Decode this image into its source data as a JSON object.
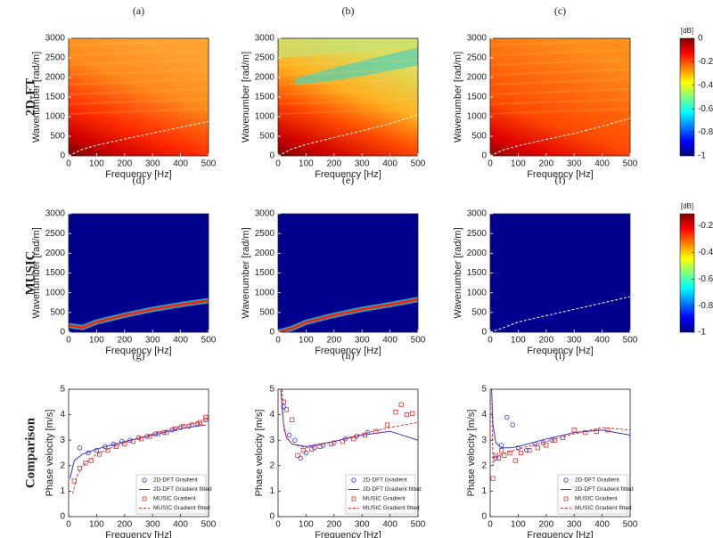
{
  "panel_labels": [
    "(a)",
    "(b)",
    "(c)",
    "(d)",
    "(e)",
    "(f)",
    "(g)",
    "(h)",
    "(i)"
  ],
  "row_labels": [
    "2D-FT",
    "MUSIC",
    "Comparison"
  ],
  "colorbars": [
    {
      "label": "[dB]",
      "lim": [
        -1,
        0
      ],
      "ticks": [
        0,
        -0.2,
        -0.4,
        -0.6,
        -0.8,
        -1
      ]
    },
    {
      "label": "[dB]",
      "lim": [
        -1,
        -0.11
      ],
      "ticks": [
        -0.2,
        -0.4,
        -0.6,
        -0.8,
        -1
      ]
    }
  ],
  "chart_data": [
    {
      "type": "heatmap",
      "xlabel": "Frequency [Hz]",
      "ylabel": "Wavenumber [rad/m]",
      "xlim": [
        0,
        500
      ],
      "ylim": [
        0,
        3000
      ],
      "xticks": [
        0,
        100,
        200,
        300,
        400,
        500
      ],
      "yticks": [
        0,
        500,
        1000,
        1500,
        2000,
        2500,
        3000
      ],
      "x": [
        0,
        50,
        100,
        200,
        300,
        400,
        500
      ],
      "series": [
        {
          "color": "#ffffff",
          "style": "dashed",
          "values": [
            0,
            170,
            270,
            430,
            580,
            730,
            880
          ]
        }
      ]
    },
    {
      "type": "heatmap",
      "xlabel": "Frequency [Hz]",
      "ylabel": "Wavenumber [rad/m]",
      "xlim": [
        0,
        500
      ],
      "ylim": [
        0,
        3000
      ],
      "xticks": [
        0,
        100,
        200,
        300,
        400,
        500
      ],
      "yticks": [
        0,
        500,
        1000,
        1500,
        2000,
        2500,
        3000
      ],
      "x": [
        0,
        50,
        100,
        200,
        300,
        400,
        500
      ],
      "series": [
        {
          "color": "#ffffff",
          "style": "dashed",
          "values": [
            0,
            180,
            290,
            470,
            640,
            820,
            1050
          ]
        }
      ]
    },
    {
      "type": "heatmap",
      "xlabel": "Frequency [Hz]",
      "ylabel": "Wavenumber [rad/m]",
      "xlim": [
        0,
        500
      ],
      "ylim": [
        0,
        3000
      ],
      "xticks": [
        0,
        100,
        200,
        300,
        400,
        500
      ],
      "yticks": [
        0,
        500,
        1000,
        1500,
        2000,
        2500,
        3000
      ],
      "x": [
        0,
        50,
        100,
        200,
        300,
        400,
        500
      ],
      "series": [
        {
          "color": "#ffffff",
          "style": "dashed",
          "values": [
            0,
            160,
            260,
            420,
            570,
            760,
            960
          ]
        }
      ]
    },
    {
      "type": "heatmap",
      "xlabel": "Frequency [Hz]",
      "ylabel": "Wavenumber [rad/m]",
      "xlim": [
        0,
        500
      ],
      "ylim": [
        0,
        3000
      ],
      "xticks": [
        0,
        100,
        200,
        300,
        400,
        500
      ],
      "yticks": [
        0,
        500,
        1000,
        1500,
        2000,
        2500,
        3000
      ],
      "x": [
        0,
        50,
        100,
        200,
        300,
        400,
        500
      ],
      "series": [
        {
          "color": "#ff2000",
          "style": "band",
          "values": [
            170,
            120,
            260,
            430,
            580,
            700,
            800
          ]
        }
      ]
    },
    {
      "type": "heatmap",
      "xlabel": "Frequency [Hz]",
      "ylabel": "Wavenumber [rad/m]",
      "xlim": [
        0,
        500
      ],
      "ylim": [
        0,
        3000
      ],
      "xticks": [
        0,
        100,
        200,
        300,
        400,
        500
      ],
      "yticks": [
        0,
        500,
        1000,
        1500,
        2000,
        2500,
        3000
      ],
      "x": [
        0,
        50,
        100,
        200,
        300,
        400,
        500
      ],
      "series": [
        {
          "color": "#ff2000",
          "style": "band",
          "values": [
            0,
            100,
            250,
            430,
            580,
            700,
            830
          ]
        }
      ]
    },
    {
      "type": "heatmap",
      "xlabel": "Frequency [Hz]",
      "ylabel": "Wavenumber [rad/m]",
      "xlim": [
        0,
        500
      ],
      "ylim": [
        0,
        3000
      ],
      "xticks": [
        0,
        100,
        200,
        300,
        400,
        500
      ],
      "yticks": [
        0,
        500,
        1000,
        1500,
        2000,
        2500,
        3000
      ],
      "x": [
        0,
        50,
        100,
        200,
        300,
        400,
        500
      ],
      "series": [
        {
          "color": "#ffffff",
          "style": "dashed",
          "values": [
            0,
            120,
            260,
            420,
            580,
            740,
            900
          ]
        }
      ]
    },
    {
      "type": "scatter",
      "xlabel": "Frequency [Hz]",
      "ylabel": "Phase velocity [m/s]",
      "xlim": [
        0,
        500
      ],
      "ylim": [
        0,
        5
      ],
      "xticks": [
        0,
        100,
        200,
        300,
        400,
        500
      ],
      "yticks": [
        0,
        1,
        2,
        3,
        4,
        5
      ],
      "legend": "lower right",
      "series": [
        {
          "name": "2D-DFT Gradient",
          "color": "#3333cc",
          "marker": "circle",
          "x": [
            40,
            70,
            100,
            130,
            160,
            190,
            220,
            250,
            280,
            310,
            340,
            370,
            400,
            430,
            460,
            490
          ],
          "values": [
            2.7,
            2.5,
            2.6,
            2.75,
            2.85,
            2.95,
            3.0,
            3.1,
            3.15,
            3.25,
            3.3,
            3.4,
            3.5,
            3.55,
            3.65,
            3.8
          ]
        },
        {
          "name": "2D-DFT Gradient fitted",
          "color": "#3333cc",
          "line": "solid",
          "x": [
            5,
            20,
            50,
            100,
            150,
            200,
            300,
            400,
            490
          ],
          "values": [
            1.5,
            2.2,
            2.45,
            2.65,
            2.8,
            2.95,
            3.2,
            3.45,
            3.6
          ]
        },
        {
          "name": "MUSIC Gradient",
          "color": "#e03030",
          "marker": "square",
          "x": [
            20,
            40,
            60,
            80,
            110,
            140,
            170,
            200,
            230,
            260,
            290,
            320,
            350,
            380,
            410,
            440,
            470,
            490
          ],
          "values": [
            1.4,
            1.9,
            2.1,
            2.2,
            2.45,
            2.6,
            2.75,
            2.85,
            2.95,
            3.05,
            3.15,
            3.25,
            3.3,
            3.45,
            3.55,
            3.6,
            3.7,
            3.9
          ]
        },
        {
          "name": "MUSIC Gradient fitted",
          "color": "#e03030",
          "line": "dashed",
          "x": [
            15,
            30,
            50,
            100,
            150,
            200,
            300,
            400,
            490
          ],
          "values": [
            0.9,
            1.6,
            2.0,
            2.45,
            2.7,
            2.9,
            3.25,
            3.55,
            3.75
          ]
        }
      ]
    },
    {
      "type": "scatter",
      "xlabel": "Frequency [Hz]",
      "ylabel": "Phase velocity [m/s]",
      "xlim": [
        0,
        500
      ],
      "ylim": [
        0,
        5
      ],
      "xticks": [
        0,
        100,
        200,
        300,
        400,
        500
      ],
      "yticks": [
        0,
        1,
        2,
        3,
        4,
        5
      ],
      "legend": "lower right",
      "series": [
        {
          "name": "2D-DFT Gradient",
          "color": "#3333cc",
          "marker": "circle",
          "x": [
            20,
            40,
            60,
            80,
            100,
            130,
            160,
            200,
            240,
            280,
            320
          ],
          "values": [
            4.3,
            3.2,
            3.0,
            2.3,
            2.5,
            2.7,
            2.8,
            2.9,
            3.05,
            3.15,
            3.3
          ]
        },
        {
          "name": "2D-DFT Gradient fitted",
          "color": "#3333cc",
          "line": "solid",
          "x": [
            10,
            15,
            20,
            30,
            50,
            100,
            200,
            300,
            400,
            500
          ],
          "values": [
            5,
            4.2,
            3.6,
            3.1,
            2.85,
            2.75,
            2.95,
            3.2,
            3.35,
            3.0
          ]
        },
        {
          "name": "MUSIC Gradient",
          "color": "#e03030",
          "marker": "square",
          "x": [
            20,
            30,
            50,
            70,
            90,
            120,
            150,
            190,
            230,
            270,
            310,
            350,
            390,
            420,
            440,
            460,
            480
          ],
          "values": [
            4.5,
            4.2,
            3.8,
            2.4,
            2.6,
            2.65,
            2.75,
            2.85,
            2.95,
            3.05,
            3.2,
            3.35,
            3.6,
            4.1,
            4.4,
            4.0,
            4.05
          ]
        },
        {
          "name": "MUSIC Gradient fitted",
          "color": "#e03030",
          "line": "dashed",
          "x": [
            15,
            18,
            22,
            30,
            50,
            100,
            200,
            300,
            400,
            500
          ],
          "values": [
            5,
            3.8,
            3.4,
            3.1,
            2.85,
            2.7,
            2.95,
            3.25,
            3.5,
            3.7
          ]
        }
      ]
    },
    {
      "type": "scatter",
      "xlabel": "Frequency [Hz]",
      "ylabel": "Phase velocity [m/s]",
      "xlim": [
        0,
        500
      ],
      "ylim": [
        0,
        5
      ],
      "xticks": [
        0,
        100,
        200,
        300,
        400,
        500
      ],
      "yticks": [
        0,
        1,
        2,
        3,
        4,
        5
      ],
      "legend": "lower right",
      "series": [
        {
          "name": "2D-DFT Gradient",
          "color": "#3333cc",
          "marker": "circle",
          "x": [
            20,
            40,
            60,
            80,
            100,
            130,
            160,
            190,
            220
          ],
          "values": [
            2.3,
            2.8,
            3.9,
            3.6,
            2.7,
            2.6,
            2.85,
            2.9,
            3.0
          ]
        },
        {
          "name": "2D-DFT Gradient fitted",
          "color": "#3333cc",
          "line": "solid",
          "x": [
            5,
            10,
            20,
            40,
            70,
            100,
            200,
            300,
            400,
            500
          ],
          "values": [
            5,
            3.6,
            2.9,
            2.7,
            2.7,
            2.75,
            3.05,
            3.3,
            3.4,
            3.2
          ]
        },
        {
          "name": "MUSIC Gradient",
          "color": "#e03030",
          "marker": "square",
          "x": [
            10,
            20,
            30,
            40,
            50,
            70,
            90,
            110,
            140,
            170,
            200,
            230,
            260,
            300,
            340,
            380,
            420
          ],
          "values": [
            1.5,
            2.4,
            2.3,
            2.6,
            2.4,
            2.5,
            2.2,
            2.5,
            2.6,
            2.7,
            2.8,
            3.0,
            3.1,
            3.4,
            3.3,
            3.35,
            3.4
          ]
        },
        {
          "name": "MUSIC Gradient fitted",
          "color": "#e03030",
          "line": "dashed",
          "x": [
            5,
            10,
            20,
            40,
            70,
            100,
            200,
            300,
            400,
            500
          ],
          "values": [
            5,
            2.0,
            2.3,
            2.45,
            2.55,
            2.65,
            2.95,
            3.25,
            3.5,
            3.4
          ]
        }
      ]
    }
  ]
}
